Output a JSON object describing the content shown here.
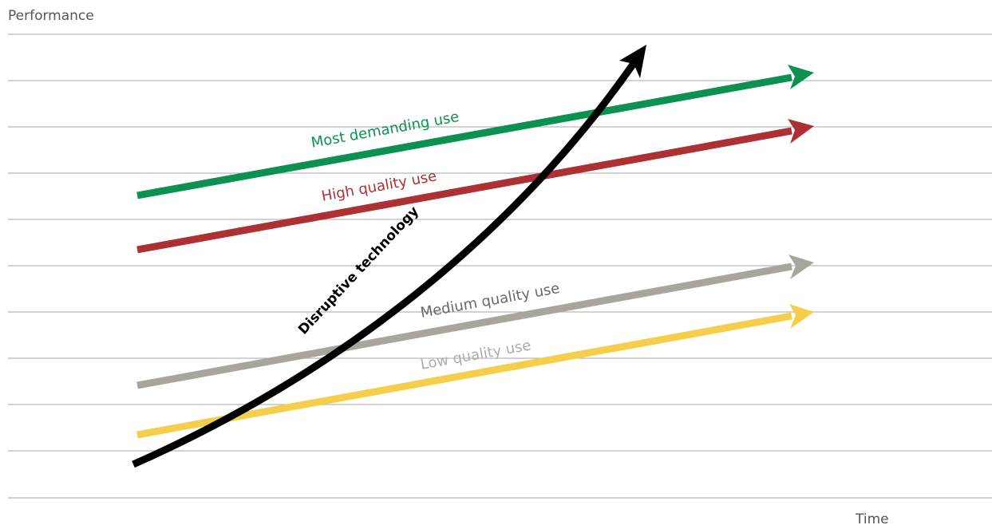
{
  "y_axis_label": "Performance",
  "x_axis_label": "Time",
  "lines": [
    {
      "id": "most-demanding",
      "label": "Most demanding use",
      "color": "#0c9150"
    },
    {
      "id": "high-quality",
      "label": "High quality use",
      "color": "#ad3034"
    },
    {
      "id": "medium-quality",
      "label": "Medium quality use",
      "color": "#a8a59d"
    },
    {
      "id": "low-quality",
      "label": "Low quality use",
      "color": "#f5cf4b"
    }
  ],
  "label_colors": {
    "most-demanding": "#0c9150",
    "high-quality": "#ad3034",
    "medium-quality": "#6b6863",
    "low-quality": "#b0aca6"
  },
  "disruptive": {
    "label": "Disruptive technology",
    "color": "#000000"
  },
  "gridline_color": "#b8b8b8"
}
